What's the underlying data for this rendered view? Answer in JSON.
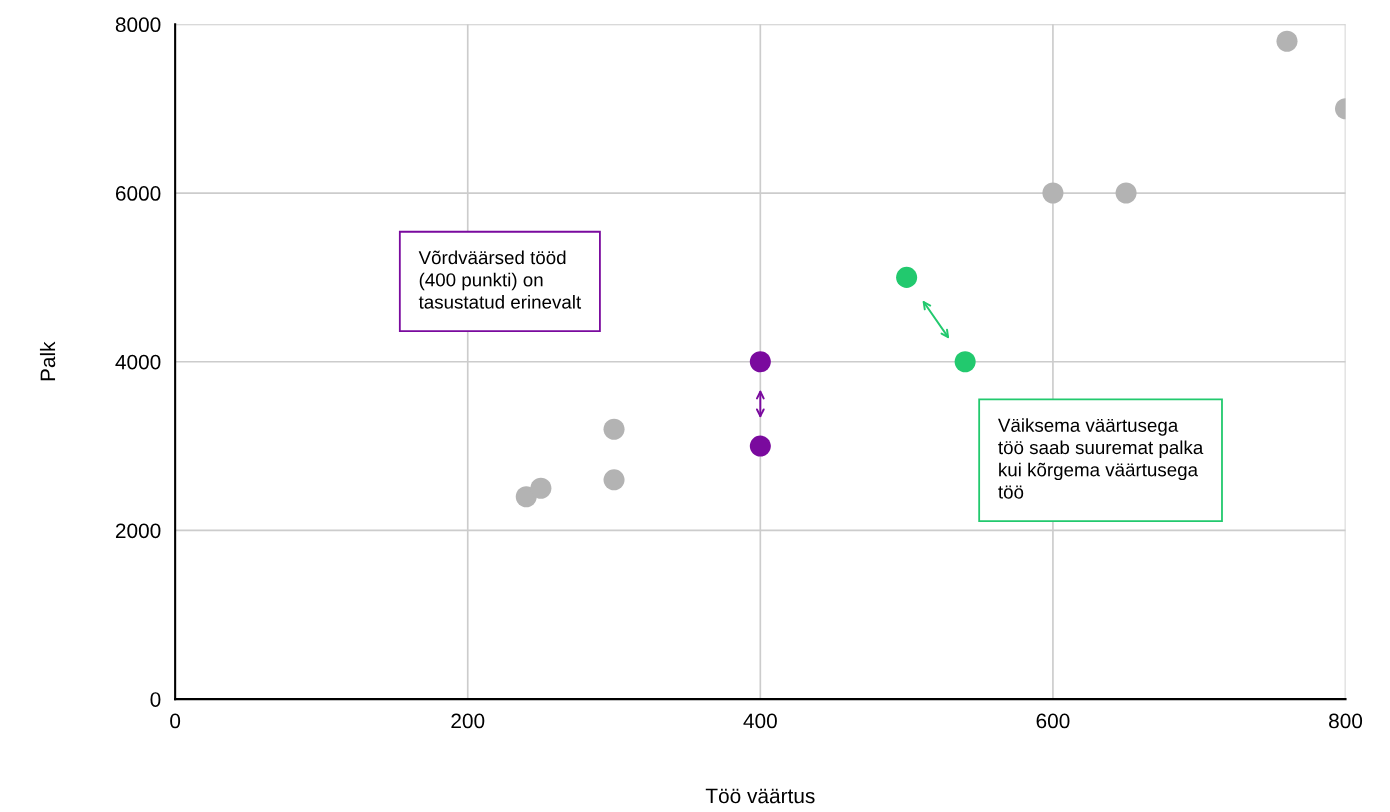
{
  "chart_data": {
    "type": "scatter",
    "xlabel": "Töö väärtus",
    "ylabel": "Palk",
    "xlim": [
      0,
      800
    ],
    "ylim": [
      0,
      8000
    ],
    "xticks": [
      0,
      200,
      400,
      600,
      800
    ],
    "yticks": [
      0,
      2000,
      4000,
      6000,
      8000
    ],
    "grid": true,
    "marker": "circle",
    "series": [
      {
        "color": "#b3b3b3",
        "x": [
          240,
          250,
          300,
          300,
          600,
          650,
          760,
          800
        ],
        "values": [
          2400,
          2500,
          3200,
          2600,
          6000,
          6000,
          7800,
          7000
        ]
      },
      {
        "color": "#7a0a9e",
        "x": [
          400,
          400
        ],
        "values": [
          4000,
          3000
        ]
      },
      {
        "color": "#22c96e",
        "x": [
          500,
          540
        ],
        "values": [
          5000,
          4000
        ]
      }
    ],
    "annotations": [
      "Võrdväärsed tööd\n(400 punkti) on\ntasustatud erinevalt",
      "Väiksema väärtusega\ntöö saab suuremat palka\nkui kõrgema väärtusega\ntöö"
    ]
  }
}
